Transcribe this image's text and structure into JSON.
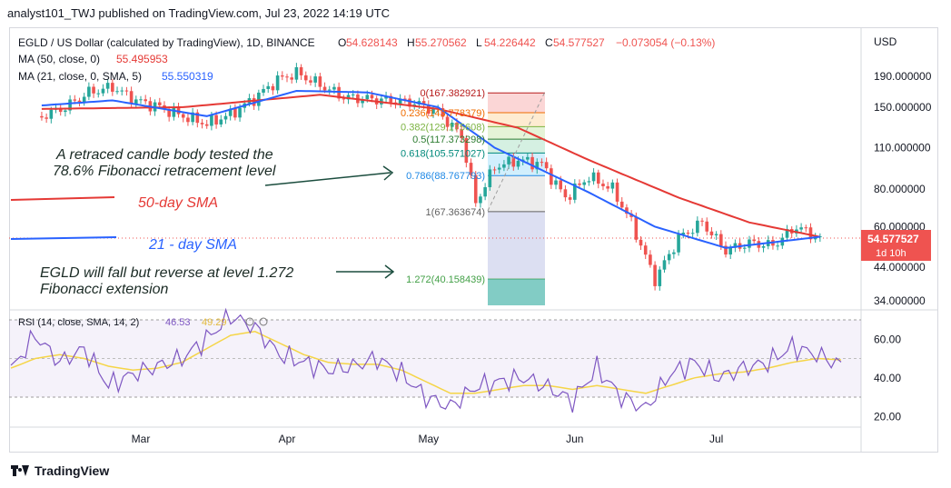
{
  "header": {
    "publisher_line": "analyst101_TWJ published on TradingView.com, Jul 23, 2022 14:19 UTC"
  },
  "legend": {
    "symbol": "EGLD / US Dollar (calculated by TradingView), 1D, BINANCE",
    "ohlc": [
      {
        "key": "O",
        "value": "54.628143"
      },
      {
        "key": "H",
        "value": "55.270562"
      },
      {
        "key": "L",
        "value": "54.226442"
      },
      {
        "key": "C",
        "value": "54.577527"
      }
    ],
    "change": "−0.073054 (−0.13%)",
    "ma50_label": "MA (50, close, 0)",
    "ma50_value": "55.495953",
    "ma21_label": "MA (21, close, 0, SMA, 5)",
    "ma21_value": "55.550319"
  },
  "colors": {
    "up": "#26a69a",
    "down": "#ef5350",
    "ma50": "#e53935",
    "ma21": "#2962ff",
    "rsi": "#7e57c2",
    "rsi_ma": "#f5d547",
    "axis_text": "#131722"
  },
  "annotations": {
    "retrace_text_1": "A retraced candle body tested the",
    "retrace_text_2": "78.6% Fibonacci retracement level",
    "sma50_label": "50-day SMA",
    "sma21_label": "21 - day SMA",
    "fall_text_1": "EGLD will fall but reverse at level 1.272",
    "fall_text_2": "Fibonacci extension"
  },
  "price_tag": {
    "value": "54.577527",
    "countdown": "1d 10h"
  },
  "rsi_legend": {
    "label": "RSI (14, close, SMA, 14, 2)",
    "value1": "46.53",
    "value2": "49.29"
  },
  "footer": {
    "brand": "TradingView"
  },
  "chart_data": [
    {
      "type": "candlestick",
      "title": "EGLD / US Dollar (calculated by TradingView), 1D, BINANCE",
      "y_axis_unit": "USD",
      "y_scale": "log",
      "y_ticks": [
        "190.000000",
        "150.000000",
        "110.000000",
        "80.000000",
        "60.000000",
        "44.000000",
        "34.000000"
      ],
      "x_ticks": [
        "Mar",
        "Apr",
        "May",
        "Jun",
        "Jul"
      ],
      "grid": false,
      "close_path": [
        [
          "Feb 08",
          140
        ],
        [
          "Feb 13",
          150
        ],
        [
          "Feb 18",
          168
        ],
        [
          "Feb 23",
          175
        ],
        [
          "Feb 28",
          158
        ],
        [
          "Mar 05",
          150
        ],
        [
          "Mar 10",
          140
        ],
        [
          "Mar 15",
          132
        ],
        [
          "Mar 20",
          142
        ],
        [
          "Mar 25",
          160
        ],
        [
          "Mar 30",
          185
        ],
        [
          "Apr 03",
          195
        ],
        [
          "Apr 08",
          178
        ],
        [
          "Apr 13",
          162
        ],
        [
          "Apr 18",
          160
        ],
        [
          "Apr 23",
          158
        ],
        [
          "Apr 28",
          155
        ],
        [
          "May 03",
          145
        ],
        [
          "May 08",
          120
        ],
        [
          "May 11",
          72
        ],
        [
          "May 15",
          95
        ],
        [
          "May 20",
          100
        ],
        [
          "May 25",
          97
        ],
        [
          "May 30",
          75
        ],
        [
          "Jun 04",
          88
        ],
        [
          "Jun 09",
          80
        ],
        [
          "Jun 13",
          62
        ],
        [
          "Jun 18",
          40
        ],
        [
          "Jun 23",
          55
        ],
        [
          "Jun 28",
          62
        ],
        [
          "Jul 03",
          50
        ],
        [
          "Jul 08",
          53
        ],
        [
          "Jul 13",
          52
        ],
        [
          "Jul 18",
          60
        ],
        [
          "Jul 23",
          54.58
        ]
      ],
      "ma50_path": [
        [
          "Feb 08",
          148
        ],
        [
          "Mar 10",
          150
        ],
        [
          "Apr 08",
          165
        ],
        [
          "May 03",
          148
        ],
        [
          "May 20",
          128
        ],
        [
          "Jun 04",
          100
        ],
        [
          "Jun 23",
          75
        ],
        [
          "Jul 08",
          62
        ],
        [
          "Jul 23",
          55.5
        ]
      ],
      "ma21_path": [
        [
          "Feb 08",
          152
        ],
        [
          "Feb 23",
          158
        ],
        [
          "Mar 15",
          140
        ],
        [
          "Apr 03",
          170
        ],
        [
          "Apr 18",
          168
        ],
        [
          "May 03",
          150
        ],
        [
          "May 15",
          110
        ],
        [
          "Jun 04",
          78
        ],
        [
          "Jun 18",
          60
        ],
        [
          "Jul 03",
          51
        ],
        [
          "Jul 23",
          55.55
        ]
      ],
      "fibonacci": [
        {
          "level": "0",
          "price": "167.382921"
        },
        {
          "level": "0.236",
          "price": "143.778379"
        },
        {
          "level": "0.382",
          "price": "129.175608"
        },
        {
          "level": "0.5",
          "price": "117.373298"
        },
        {
          "level": "0.618",
          "price": "105.571027"
        },
        {
          "level": "0.786",
          "price": "88.767793"
        },
        {
          "level": "1",
          "price": "67.363674"
        },
        {
          "level": "1.272",
          "price": "40.158439"
        }
      ]
    },
    {
      "type": "line",
      "title": "RSI (14, close, SMA, 14, 2)",
      "y_ticks": [
        "60.00",
        "40.00",
        "20.00"
      ],
      "ylim": [
        15,
        80
      ],
      "bands": [
        30,
        70
      ],
      "series": [
        {
          "values": [
            44,
            62,
            48,
            55,
            36,
            42,
            46,
            50,
            60,
            72,
            66,
            52,
            48,
            44,
            46,
            50,
            42,
            30,
            25,
            35,
            38,
            40,
            35,
            28,
            45,
            30,
            24,
            42,
            48,
            40,
            45,
            48,
            56,
            52,
            46.53
          ]
        },
        {
          "values": [
            45,
            50,
            52,
            50,
            46,
            44,
            45,
            48,
            55,
            62,
            64,
            58,
            52,
            48,
            47,
            47,
            44,
            38,
            32,
            32,
            34,
            36,
            36,
            34,
            36,
            34,
            32,
            36,
            40,
            42,
            43,
            45,
            48,
            50,
            49.29
          ]
        }
      ]
    }
  ]
}
